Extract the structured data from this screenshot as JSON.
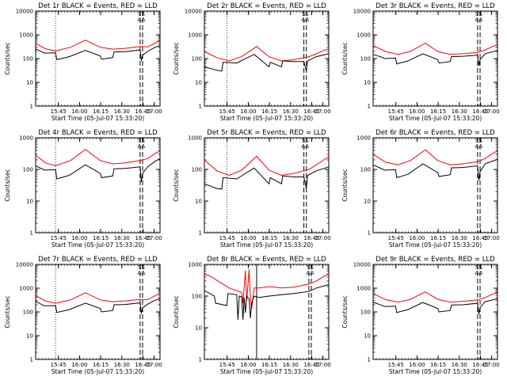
{
  "chart_data": [
    {
      "type": "line",
      "title": "Det 1r BLACK = Events, RED = LLD",
      "xlabel": "Start Time (05-Jul-07 15:33:20)",
      "ylabel": "Counts/sec",
      "ylim": [
        1,
        10000
      ],
      "yticks": [
        "1",
        "10",
        "100",
        "1000",
        "10000"
      ],
      "xticks": [
        "15:45",
        "16:00",
        "16:15",
        "16:30",
        "16:45",
        "17:00"
      ],
      "yscale": "log",
      "series": [
        {
          "color": "#ff0000",
          "x": [
            0,
            8,
            16,
            28,
            40,
            52,
            62,
            72,
            84,
            90,
            96,
            100
          ],
          "values": [
            430,
            260,
            210,
            300,
            600,
            300,
            250,
            270,
            320,
            310,
            450,
            600
          ]
        },
        {
          "color": "#000000",
          "x": [
            0,
            6,
            7,
            16,
            17,
            27,
            40,
            52,
            53,
            62,
            63,
            72,
            84,
            85,
            86,
            90,
            96,
            100
          ],
          "values": [
            260,
            180,
            170,
            175,
            90,
            120,
            220,
            130,
            95,
            110,
            190,
            195,
            230,
            80,
            140,
            200,
            300,
            350
          ]
        }
      ],
      "vlines": {
        "dotted": [
          16
        ],
        "dashed": [
          84,
          86
        ]
      },
      "markers": [
        "SS",
        "AA"
      ]
    },
    {
      "type": "line",
      "title": "Det 2r BLACK = Events, RED = LLD",
      "xlabel": "Start Time (05-Jul-07 15:33:20)",
      "ylabel": "Counts/sec",
      "ylim": [
        1,
        10000
      ],
      "yticks": [
        "1",
        "10",
        "100",
        "1000",
        "10000"
      ],
      "xticks": [
        "15:45",
        "16:00",
        "16:15",
        "16:30",
        "16:45",
        "17:00"
      ],
      "yscale": "log",
      "series": [
        {
          "color": "#ff0000",
          "x": [
            0,
            10,
            20,
            30,
            42,
            52,
            62,
            72,
            84,
            90,
            96,
            100
          ],
          "values": [
            200,
            110,
            80,
            120,
            320,
            120,
            80,
            90,
            120,
            160,
            220,
            260
          ]
        },
        {
          "color": "#000000",
          "x": [
            0,
            10,
            14,
            15,
            26,
            40,
            52,
            53,
            62,
            63,
            72,
            80,
            82,
            83,
            90,
            100
          ],
          "values": [
            45,
            32,
            30,
            70,
            65,
            150,
            45,
            70,
            45,
            80,
            75,
            75,
            30,
            80,
            120,
            160
          ]
        }
      ],
      "vlines": {
        "dotted": [
          18
        ],
        "dashed": [
          80,
          82
        ]
      },
      "markers": [
        "SS",
        "AA"
      ]
    },
    {
      "type": "line",
      "title": "Det 3r BLACK = Events, RED = LLD",
      "xlabel": "Start Time (05-Jul-07 15:33:20)",
      "ylabel": "Counts/sec",
      "ylim": [
        1,
        10000
      ],
      "yticks": [
        "1",
        "10",
        "100",
        "1000",
        "10000"
      ],
      "xticks": [
        "15:45",
        "16:00",
        "16:15",
        "16:30",
        "16:45",
        "17:00"
      ],
      "yscale": "log",
      "series": [
        {
          "color": "#ff0000",
          "x": [
            0,
            10,
            20,
            30,
            42,
            52,
            62,
            72,
            84,
            90,
            96,
            100
          ],
          "values": [
            350,
            200,
            150,
            200,
            450,
            200,
            150,
            160,
            180,
            230,
            320,
            380
          ]
        },
        {
          "color": "#000000",
          "x": [
            0,
            8,
            9,
            18,
            19,
            28,
            40,
            52,
            53,
            62,
            63,
            72,
            84,
            85,
            86,
            90,
            100
          ],
          "values": [
            150,
            110,
            100,
            105,
            60,
            80,
            160,
            90,
            65,
            75,
            120,
            125,
            140,
            50,
            90,
            160,
            220
          ]
        }
      ],
      "vlines": {
        "dotted": [],
        "dashed": [
          84,
          86
        ]
      },
      "markers": [
        "SS",
        "AA"
      ]
    },
    {
      "type": "line",
      "title": "Det 4r BLACK = Events, RED = LLD",
      "xlabel": "Start Time (05-Jul-07 15:33:20)",
      "ylabel": "Counts/sec",
      "ylim": [
        1,
        1000
      ],
      "yticks": [
        "1",
        "10",
        "100",
        "1000"
      ],
      "xticks": [
        "15:45",
        "16:00",
        "16:15",
        "16:30",
        "16:45",
        "17:00"
      ],
      "yscale": "log",
      "series": [
        {
          "color": "#ff0000",
          "x": [
            0,
            8,
            16,
            28,
            40,
            52,
            62,
            72,
            84,
            90,
            96,
            100
          ],
          "values": [
            280,
            160,
            130,
            190,
            430,
            190,
            150,
            160,
            190,
            220,
            320,
            380
          ]
        },
        {
          "color": "#000000",
          "x": [
            0,
            6,
            7,
            16,
            17,
            27,
            40,
            52,
            53,
            62,
            63,
            72,
            84,
            85,
            86,
            90,
            96,
            100
          ],
          "values": [
            130,
            100,
            95,
            98,
            50,
            65,
            140,
            75,
            55,
            62,
            105,
            108,
            120,
            40,
            75,
            120,
            180,
            220
          ]
        }
      ],
      "vlines": {
        "dotted": [
          16
        ],
        "dashed": [
          84,
          86
        ]
      },
      "markers": [
        "SS",
        "AA"
      ]
    },
    {
      "type": "line",
      "title": "Det 5r BLACK = Events, RED = LLD",
      "xlabel": "Start Time (05-Jul-07 15:33:20)",
      "ylabel": "Counts/sec",
      "ylim": [
        1,
        1000
      ],
      "yticks": [
        "1",
        "10",
        "100",
        "1000"
      ],
      "xticks": [
        "15:45",
        "16:00",
        "16:15",
        "16:30",
        "16:45",
        "17:00"
      ],
      "yscale": "log",
      "series": [
        {
          "color": "#ff0000",
          "x": [
            0,
            10,
            20,
            30,
            42,
            52,
            62,
            72,
            84,
            90,
            96,
            100
          ],
          "values": [
            200,
            90,
            65,
            95,
            260,
            95,
            65,
            75,
            100,
            140,
            200,
            250
          ]
        },
        {
          "color": "#000000",
          "x": [
            0,
            10,
            14,
            15,
            26,
            40,
            52,
            53,
            62,
            63,
            72,
            80,
            82,
            83,
            90,
            100
          ],
          "values": [
            35,
            25,
            24,
            55,
            50,
            110,
            35,
            55,
            35,
            62,
            58,
            58,
            25,
            65,
            90,
            120
          ]
        }
      ],
      "vlines": {
        "dotted": [
          18
        ],
        "dashed": [
          80,
          82
        ]
      },
      "markers": [
        "SS",
        "AA"
      ]
    },
    {
      "type": "line",
      "title": "Det 6r BLACK = Events, RED = LLD",
      "xlabel": "Start Time (05-Jul-07 15:33:20)",
      "ylabel": "Counts/sec",
      "ylim": [
        1,
        1000
      ],
      "yticks": [
        "1",
        "10",
        "100",
        "1000"
      ],
      "xticks": [
        "15:45",
        "16:00",
        "16:15",
        "16:30",
        "16:45",
        "17:00"
      ],
      "yscale": "log",
      "series": [
        {
          "color": "#ff0000",
          "x": [
            0,
            10,
            20,
            30,
            42,
            52,
            62,
            72,
            84,
            90,
            96,
            100
          ],
          "values": [
            300,
            170,
            140,
            190,
            420,
            190,
            140,
            150,
            175,
            220,
            320,
            380
          ]
        },
        {
          "color": "#000000",
          "x": [
            0,
            8,
            9,
            18,
            19,
            28,
            40,
            52,
            53,
            62,
            63,
            72,
            84,
            85,
            86,
            90,
            100
          ],
          "values": [
            140,
            100,
            95,
            98,
            55,
            70,
            150,
            80,
            60,
            68,
            112,
            115,
            130,
            45,
            85,
            150,
            210
          ]
        }
      ],
      "vlines": {
        "dotted": [],
        "dashed": [
          84,
          86
        ]
      },
      "markers": [
        "SS",
        "AA"
      ]
    },
    {
      "type": "line",
      "title": "Det 7r BLACK = Events, RED = LLD",
      "xlabel": "Start Time (05-Jul-07 15:33:20)",
      "ylabel": "Counts/sec",
      "ylim": [
        1,
        10000
      ],
      "yticks": [
        "1",
        "10",
        "100",
        "1000",
        "10000"
      ],
      "xticks": [
        "15:45",
        "16:00",
        "16:15",
        "16:30",
        "16:45",
        "17:00"
      ],
      "yscale": "log",
      "series": [
        {
          "color": "#ff0000",
          "x": [
            0,
            8,
            16,
            28,
            40,
            52,
            62,
            72,
            84,
            90,
            96,
            100
          ],
          "values": [
            480,
            290,
            230,
            320,
            640,
            320,
            270,
            290,
            340,
            330,
            480,
            640
          ]
        },
        {
          "color": "#000000",
          "x": [
            0,
            6,
            7,
            16,
            17,
            27,
            40,
            52,
            53,
            62,
            63,
            72,
            84,
            85,
            86,
            90,
            96,
            100
          ],
          "values": [
            280,
            190,
            180,
            185,
            95,
            125,
            235,
            140,
            100,
            115,
            200,
            205,
            240,
            85,
            150,
            210,
            310,
            360
          ]
        }
      ],
      "vlines": {
        "dotted": [
          16
        ],
        "dashed": [
          84,
          86
        ]
      },
      "markers": [
        "SS",
        "AA"
      ]
    },
    {
      "type": "line",
      "title": "Det 8r BLACK = Events, RED = LLD",
      "xlabel": "Start Time (05-Jul-07 15:33:20)",
      "ylabel": "Counts/sec",
      "ylim": [
        1,
        1000
      ],
      "yticks": [
        "1",
        "10",
        "100",
        "1000"
      ],
      "xticks": [
        "15:45",
        "16:00",
        "16:15",
        "16:30",
        "16:45",
        "17:00"
      ],
      "yscale": "log",
      "series": [
        {
          "color": "#ff0000",
          "x": [
            0,
            6,
            12,
            20,
            30,
            31,
            33,
            34,
            36,
            37,
            38,
            40,
            44,
            52,
            62,
            72,
            84,
            90,
            96,
            100
          ],
          "values": [
            500,
            400,
            280,
            180,
            130,
            60,
            650,
            70,
            700,
            90,
            40,
            180,
            180,
            200,
            180,
            190,
            240,
            300,
            420,
            500
          ]
        },
        {
          "color": "#000000",
          "x": [
            0,
            8,
            9,
            18,
            19,
            26,
            27,
            28,
            30,
            31,
            32,
            33,
            34,
            36,
            37,
            38,
            40,
            44,
            52,
            62,
            72,
            84,
            90,
            100
          ],
          "values": [
            150,
            100,
            60,
            50,
            120,
            110,
            18,
            100,
            95,
            18,
            90,
            30,
            100,
            80,
            20,
            60,
            100,
            90,
            100,
            110,
            120,
            140,
            180,
            230
          ]
        }
      ],
      "vlines": {
        "dotted": [],
        "solid": [
          42
        ],
        "dashed": [
          84,
          86
        ]
      },
      "markers": [
        "SS",
        "AA"
      ]
    },
    {
      "type": "line",
      "title": "Det 9r BLACK = Events, RED = LLD",
      "xlabel": "Start Time (05-Jul-07 15:33:20)",
      "ylabel": "Counts/sec",
      "ylim": [
        1,
        10000
      ],
      "yticks": [
        "1",
        "10",
        "100",
        "1000",
        "10000"
      ],
      "xticks": [
        "15:45",
        "16:00",
        "16:15",
        "16:30",
        "16:45",
        "17:00"
      ],
      "yscale": "log",
      "series": [
        {
          "color": "#ff0000",
          "x": [
            0,
            10,
            20,
            30,
            42,
            52,
            62,
            72,
            84,
            90,
            96,
            100
          ],
          "values": [
            600,
            330,
            260,
            340,
            700,
            340,
            260,
            280,
            320,
            400,
            560,
            680
          ]
        },
        {
          "color": "#000000",
          "x": [
            0,
            8,
            9,
            18,
            19,
            28,
            40,
            52,
            53,
            62,
            63,
            72,
            84,
            85,
            86,
            90,
            100
          ],
          "values": [
            260,
            180,
            170,
            175,
            95,
            125,
            250,
            140,
            100,
            115,
            195,
            200,
            230,
            80,
            150,
            270,
            360
          ]
        }
      ],
      "vlines": {
        "dotted": [],
        "dashed": [
          84,
          86
        ]
      },
      "markers": [
        "SS",
        "AA"
      ]
    }
  ]
}
